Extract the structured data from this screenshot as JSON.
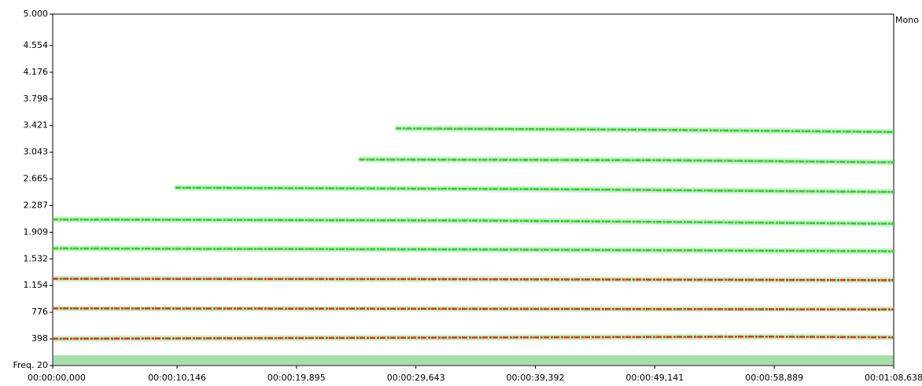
{
  "chart_data": {
    "type": "spectrogram",
    "channel": "Mono",
    "xlim": [
      0,
      68.638
    ],
    "xticks": [
      {
        "value": 0,
        "label": "00:00:00,000"
      },
      {
        "value": 10.146,
        "label": "00:00:10,146"
      },
      {
        "value": 19.895,
        "label": "00:00:19,895"
      },
      {
        "value": 29.643,
        "label": "00:00:29,643"
      },
      {
        "value": 39.392,
        "label": "00:00:39,392"
      },
      {
        "value": 49.141,
        "label": "00:00:49,141"
      },
      {
        "value": 58.889,
        "label": "00:00:58,889"
      },
      {
        "value": 68.638,
        "label": "00:01:08,638"
      }
    ],
    "ylim": [
      20,
      5000
    ],
    "yticks": [
      {
        "value": 20,
        "label": "Freq. 20"
      },
      {
        "value": 398,
        "label": "398"
      },
      {
        "value": 776,
        "label": "776"
      },
      {
        "value": 1154,
        "label": "1.154"
      },
      {
        "value": 1532,
        "label": "1.532"
      },
      {
        "value": 1909,
        "label": "1.909"
      },
      {
        "value": 2287,
        "label": "2.287"
      },
      {
        "value": 2665,
        "label": "2.665"
      },
      {
        "value": 3043,
        "label": "3.043"
      },
      {
        "value": 3421,
        "label": "3.421"
      },
      {
        "value": 3798,
        "label": "3.798"
      },
      {
        "value": 4176,
        "label": "4.176"
      },
      {
        "value": 4554,
        "label": "4.554"
      },
      {
        "value": 5000,
        "label": "5.000"
      }
    ],
    "series": [
      {
        "color": "#e2361c",
        "x": [
          0,
          20,
          40,
          58,
          68.638
        ],
        "values": [
          400,
          410,
          420,
          430,
          420
        ]
      },
      {
        "color": "#e2361c",
        "x": [
          0,
          30,
          68.638
        ],
        "values": [
          830,
          825,
          815
        ]
      },
      {
        "color": "#e2361c",
        "x": [
          0,
          30,
          68.638
        ],
        "values": [
          1250,
          1245,
          1230
        ]
      },
      {
        "color": "#33cc33",
        "x": [
          0,
          35,
          68.638
        ],
        "values": [
          1680,
          1665,
          1640
        ]
      },
      {
        "color": "#33cc33",
        "x": [
          0,
          35,
          68.638
        ],
        "values": [
          2090,
          2075,
          2030
        ]
      },
      {
        "color": "#33cc33",
        "x": [
          10,
          40,
          68.638
        ],
        "values": [
          2540,
          2520,
          2480
        ]
      },
      {
        "color": "#33cc33",
        "x": [
          25,
          50,
          68.638
        ],
        "values": [
          2940,
          2930,
          2900
        ]
      },
      {
        "color": "#33cc33",
        "x": [
          28,
          50,
          68.638
        ],
        "values": [
          3380,
          3360,
          3330
        ]
      }
    ]
  }
}
